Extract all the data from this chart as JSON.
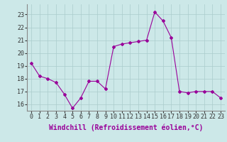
{
  "x": [
    0,
    1,
    2,
    3,
    4,
    5,
    6,
    7,
    8,
    9,
    10,
    11,
    12,
    13,
    14,
    15,
    16,
    17,
    18,
    19,
    20,
    21,
    22,
    23
  ],
  "y": [
    19.2,
    18.2,
    18.0,
    17.7,
    16.8,
    15.7,
    16.5,
    17.8,
    17.8,
    17.2,
    20.5,
    20.7,
    20.8,
    20.9,
    21.0,
    23.2,
    22.5,
    21.2,
    17.0,
    16.9,
    17.0,
    17.0,
    17.0,
    16.5
  ],
  "line_color": "#990099",
  "marker": "D",
  "marker_size": 2,
  "bg_color": "#cce8e8",
  "grid_color": "#aacccc",
  "xlabel": "Windchill (Refroidissement éolien,°C)",
  "xlabel_fontsize": 7,
  "ylabel_ticks": [
    16,
    17,
    18,
    19,
    20,
    21,
    22,
    23
  ],
  "xlim": [
    -0.5,
    23.5
  ],
  "ylim": [
    15.5,
    23.8
  ],
  "tick_fontsize": 6,
  "title": ""
}
